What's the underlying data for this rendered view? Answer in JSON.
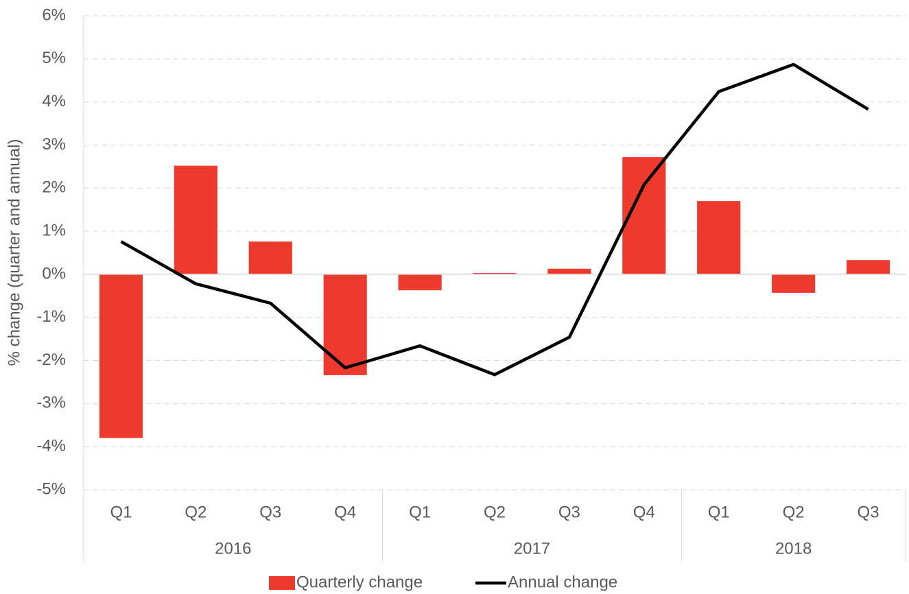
{
  "chart_data": {
    "type": "bar_line",
    "y_axis_label": "% change (quarter and annual)",
    "category_groups": [
      {
        "name": "2016",
        "categories": [
          "Q1",
          "Q2",
          "Q3",
          "Q4"
        ]
      },
      {
        "name": "2017",
        "categories": [
          "Q1",
          "Q2",
          "Q3",
          "Q4"
        ]
      },
      {
        "name": "2018",
        "categories": [
          "Q1",
          "Q2",
          "Q3"
        ]
      }
    ],
    "series": [
      {
        "name": "Quarterly change",
        "type": "bar",
        "color": "#ee3a2c",
        "values": [
          -3.8,
          2.52,
          0.76,
          -2.34,
          -0.37,
          0.03,
          0.13,
          2.72,
          1.7,
          -0.43,
          0.33
        ]
      },
      {
        "name": "Annual change",
        "type": "line",
        "color": "#000000",
        "values": [
          0.76,
          -0.22,
          -0.67,
          -2.17,
          -1.66,
          -2.33,
          -1.46,
          2.08,
          4.24,
          4.87,
          3.83
        ]
      }
    ],
    "ylim": [
      -5,
      6
    ],
    "yticks": [
      {
        "value": -5,
        "label": "-5%"
      },
      {
        "value": -4,
        "label": "-4%"
      },
      {
        "value": -3,
        "label": "-3%"
      },
      {
        "value": -2,
        "label": "-2%"
      },
      {
        "value": -1,
        "label": "-1%"
      },
      {
        "value": 0,
        "label": "0%"
      },
      {
        "value": 1,
        "label": "1%"
      },
      {
        "value": 2,
        "label": "2%"
      },
      {
        "value": 3,
        "label": "3%"
      },
      {
        "value": 4,
        "label": "4%"
      },
      {
        "value": 5,
        "label": "5%"
      },
      {
        "value": 6,
        "label": "6%"
      }
    ],
    "grid": true,
    "legend": "bottom"
  }
}
